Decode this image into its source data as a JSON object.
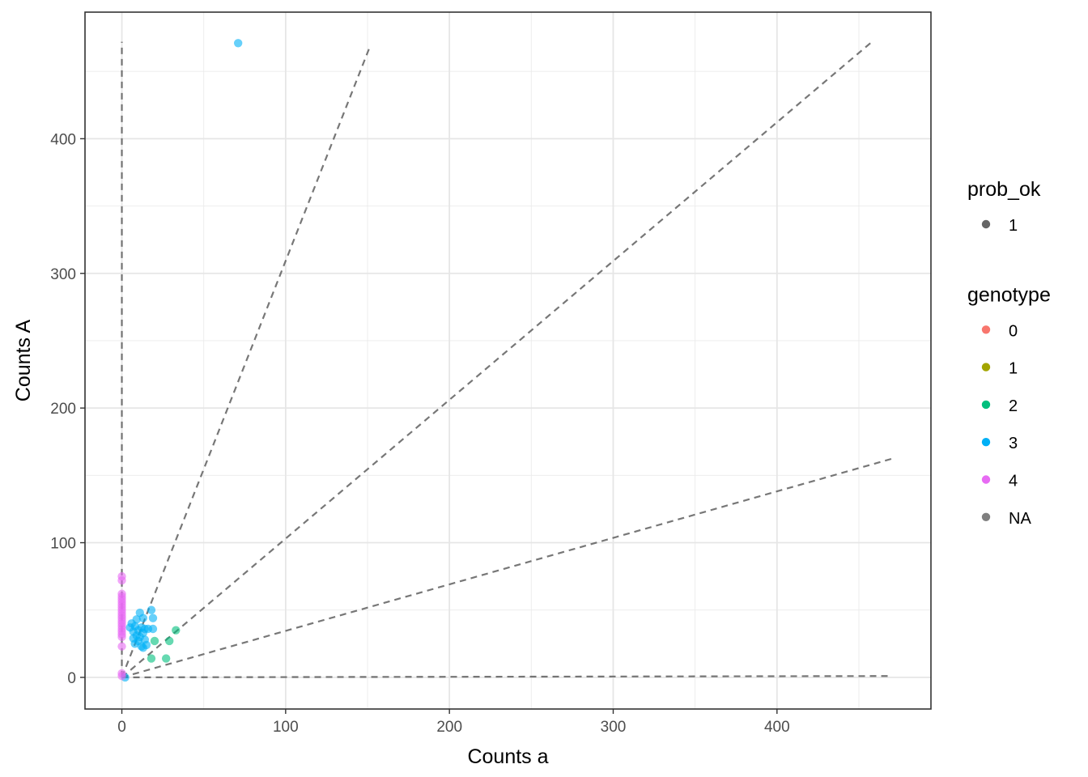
{
  "chart_data": {
    "type": "scatter",
    "title": "",
    "xlabel": "Counts a",
    "ylabel": "Counts A",
    "xlim": [
      -22.5,
      494
    ],
    "ylim": [
      -23.5,
      494
    ],
    "x_ticks": [
      0,
      100,
      200,
      300,
      400
    ],
    "y_ticks": [
      0,
      100,
      200,
      300,
      400
    ],
    "grid": true,
    "legend_position": "right",
    "reference_lines": [
      {
        "x": [
          0,
          0
        ],
        "y": [
          0,
          472
        ]
      },
      {
        "x": [
          0,
          151
        ],
        "y": [
          0,
          467
        ]
      },
      {
        "x": [
          0,
          458
        ],
        "y": [
          0,
          472
        ]
      },
      {
        "x": [
          0,
          472
        ],
        "y": [
          0,
          163
        ]
      },
      {
        "x": [
          0,
          468
        ],
        "y": [
          0,
          1
        ]
      }
    ],
    "legends": [
      {
        "title": "prob_ok",
        "entries": [
          {
            "label": "1",
            "color": "#555555"
          }
        ]
      },
      {
        "title": "genotype",
        "entries": [
          {
            "label": "0",
            "color": "#F8766D"
          },
          {
            "label": "1",
            "color": "#A3A500"
          },
          {
            "label": "2",
            "color": "#00BF7D"
          },
          {
            "label": "3",
            "color": "#00B0F6"
          },
          {
            "label": "4",
            "color": "#E76BF3"
          },
          {
            "label": "NA",
            "color": "#7F7F7F"
          }
        ]
      }
    ],
    "series": [
      {
        "name": "2",
        "color": "#00BF7D",
        "points": [
          [
            33,
            35
          ],
          [
            29,
            27
          ],
          [
            20,
            27
          ],
          [
            27,
            14
          ],
          [
            18,
            14
          ]
        ]
      },
      {
        "name": "3",
        "color": "#00B0F6",
        "points": [
          [
            71,
            471
          ],
          [
            18,
            50
          ],
          [
            11,
            48
          ],
          [
            19,
            44
          ],
          [
            13,
            44
          ],
          [
            9,
            43
          ],
          [
            6,
            40
          ],
          [
            8,
            38
          ],
          [
            5,
            37
          ],
          [
            12,
            37
          ],
          [
            14,
            36
          ],
          [
            19,
            36
          ],
          [
            16,
            36
          ],
          [
            10,
            35
          ],
          [
            7,
            34
          ],
          [
            13,
            33
          ],
          [
            9,
            31
          ],
          [
            11,
            30
          ],
          [
            7,
            29
          ],
          [
            14,
            28
          ],
          [
            10,
            27
          ],
          [
            8,
            25
          ],
          [
            15,
            24
          ],
          [
            12,
            23
          ],
          [
            13,
            22
          ],
          [
            2,
            0
          ]
        ]
      },
      {
        "name": "4",
        "color": "#E76BF3",
        "points": [
          [
            0,
            75
          ],
          [
            0,
            72
          ],
          [
            0,
            62
          ],
          [
            0,
            60
          ],
          [
            0,
            58
          ],
          [
            0,
            56
          ],
          [
            0,
            54
          ],
          [
            0,
            52
          ],
          [
            0,
            50
          ],
          [
            0,
            48
          ],
          [
            0,
            46
          ],
          [
            0,
            44
          ],
          [
            0,
            42
          ],
          [
            0,
            40
          ],
          [
            0,
            38
          ],
          [
            0,
            36
          ],
          [
            0,
            34
          ],
          [
            0,
            32
          ],
          [
            0,
            30
          ],
          [
            0,
            23
          ],
          [
            0,
            3
          ],
          [
            0,
            1
          ]
        ]
      }
    ]
  }
}
